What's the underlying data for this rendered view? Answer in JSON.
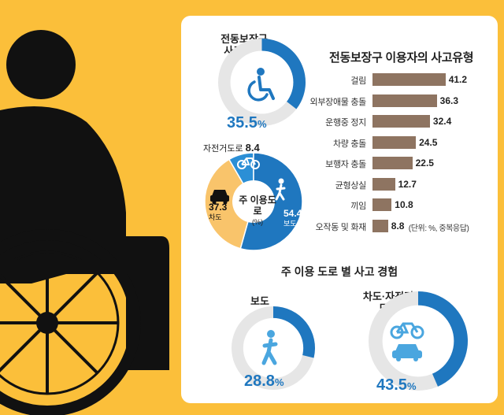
{
  "wheelchair_use": {
    "label_line1": "전동보장구",
    "label_line2": "사고 경험",
    "value": 35.5,
    "value_text": "35.5",
    "unit": "%"
  },
  "main_road_pie": {
    "center_line1": "주 이용도로",
    "center_line2": "(%)",
    "slices": [
      {
        "name": "보도",
        "value": 54.4,
        "value_text": "54.4",
        "color": "#1f77bf"
      },
      {
        "name": "차도",
        "value": 37.3,
        "value_text": "37.3",
        "color": "#f9c46b"
      },
      {
        "name": "자전거도로",
        "value": 8.4,
        "value_text": "8.4",
        "color": "#2b8fd6"
      }
    ]
  },
  "chart_data": [
    {
      "type": "bar",
      "title": "전동보장구 이용자의 사고유형",
      "categories": [
        "걸림",
        "외부장애물 충돌",
        "운행중 정지",
        "차량 충돌",
        "보행자 충돌",
        "균형상실",
        "끼임",
        "오작동 및 화재"
      ],
      "values": [
        41.2,
        36.3,
        32.4,
        24.5,
        22.5,
        12.7,
        10.8,
        8.8
      ],
      "value_labels": [
        "41.2",
        "36.3",
        "32.4",
        "24.5",
        "22.5",
        "12.7",
        "10.8",
        "8.8"
      ],
      "note": "(단위: %, 중복응답)",
      "bar_color": "#8e7461"
    },
    {
      "type": "pie",
      "title": "주 이용도로",
      "categories": [
        "보도",
        "차도",
        "자전거도로"
      ],
      "values": [
        54.4,
        37.3,
        8.4
      ]
    }
  ],
  "road_accident": {
    "title": "주 이용 도로 별 사고 경험",
    "sidewalk": {
      "label": "보도",
      "value": 28.8,
      "value_text": "28.8",
      "unit": "%"
    },
    "road_bike": {
      "label_line1": "차도·자전거",
      "label_line2": "도로",
      "value": 43.5,
      "value_text": "43.5",
      "unit": "%"
    }
  },
  "colors": {
    "background": "#fbbf3a",
    "accent": "#1f77bf",
    "bar": "#8e7461",
    "figure": "#111111"
  }
}
